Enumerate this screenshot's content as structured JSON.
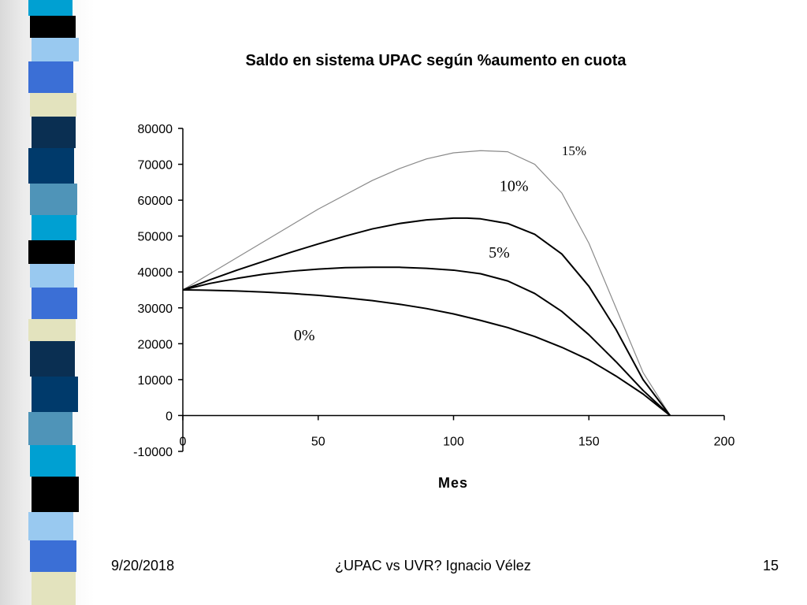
{
  "slide": {
    "footer_date": "9/20/2018",
    "footer_center": "¿UPAC vs UVR? Ignacio Vélez",
    "page_number": "15"
  },
  "colors": {
    "stripe_palette": [
      "#00a0d2",
      "#3b6fd6",
      "#003a6b",
      "#000000",
      "#e3e3be",
      "#4f94b8",
      "#99c9f0",
      "#0a2f52"
    ]
  },
  "chart_data": {
    "type": "line",
    "title": "Saldo en sistema UPAC según %aumento en cuota",
    "xlabel": "Mes",
    "ylabel": "",
    "xlim": [
      0,
      200
    ],
    "ylim": [
      -10000,
      80000
    ],
    "x_ticks": [
      "0",
      "50",
      "100",
      "150",
      "200"
    ],
    "y_ticks": [
      "80000",
      "70000",
      "60000",
      "50000",
      "40000",
      "30000",
      "20000",
      "10000",
      "0",
      "-10000"
    ],
    "grid": false,
    "legend": "none",
    "series": [
      {
        "name": "15%",
        "color": "#8a8a8a",
        "x": [
          0,
          10,
          20,
          30,
          40,
          50,
          60,
          70,
          80,
          90,
          100,
          110,
          120,
          130,
          140,
          150,
          160,
          170,
          180
        ],
        "y": [
          35000,
          39500,
          44000,
          48500,
          53000,
          57500,
          61500,
          65500,
          68800,
          71500,
          73200,
          73800,
          73500,
          70000,
          62000,
          48000,
          30000,
          12000,
          0
        ]
      },
      {
        "name": "10%",
        "color": "#000000",
        "x": [
          0,
          10,
          20,
          30,
          40,
          50,
          60,
          70,
          80,
          90,
          100,
          105,
          110,
          120,
          130,
          140,
          150,
          160,
          170,
          180
        ],
        "y": [
          35000,
          37800,
          40500,
          43000,
          45500,
          47800,
          50000,
          52000,
          53500,
          54500,
          55000,
          55000,
          54800,
          53500,
          50500,
          45000,
          36000,
          24000,
          10000,
          0
        ]
      },
      {
        "name": "5%",
        "color": "#000000",
        "x": [
          0,
          10,
          20,
          30,
          40,
          50,
          60,
          70,
          80,
          90,
          100,
          110,
          120,
          130,
          140,
          150,
          160,
          170,
          180
        ],
        "y": [
          35000,
          36800,
          38200,
          39400,
          40200,
          40800,
          41200,
          41300,
          41300,
          41000,
          40500,
          39500,
          37500,
          34000,
          29000,
          22500,
          15000,
          7000,
          0
        ]
      },
      {
        "name": "0%",
        "color": "#000000",
        "x": [
          0,
          10,
          20,
          30,
          40,
          50,
          60,
          70,
          80,
          90,
          100,
          110,
          120,
          130,
          140,
          150,
          160,
          170,
          180
        ],
        "y": [
          35000,
          34900,
          34700,
          34400,
          34000,
          33500,
          32800,
          32000,
          31000,
          29800,
          28300,
          26500,
          24500,
          22000,
          19000,
          15500,
          11000,
          6000,
          0
        ]
      }
    ],
    "annotations": [
      {
        "text": "15%",
        "x": 140,
        "y": 72500
      },
      {
        "text": "10%",
        "x": 117,
        "y": 62500
      },
      {
        "text": "5%",
        "x": 113,
        "y": 44000
      },
      {
        "text": "0%",
        "x": 41,
        "y": 21000
      }
    ]
  }
}
